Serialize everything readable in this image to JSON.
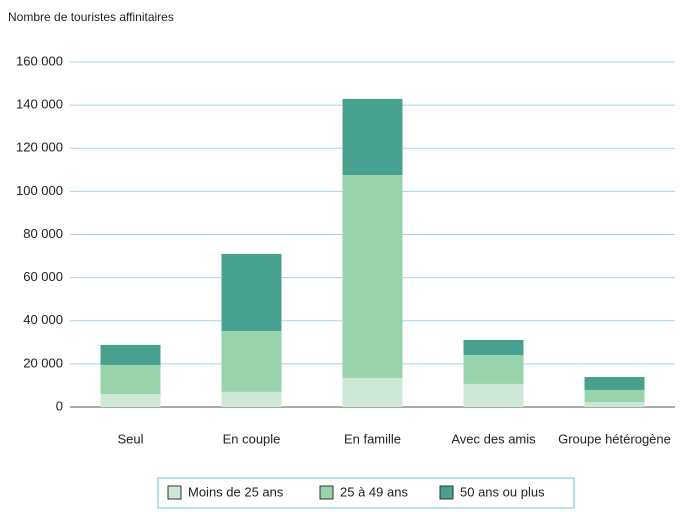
{
  "chart_data": {
    "type": "stacked_bar",
    "y_axis_label": "Nombre de touristes affinitaires",
    "categories": [
      "Seul",
      "En couple",
      "En famille",
      "Avec des amis",
      "Groupe hétérogène"
    ],
    "series": [
      {
        "name": "Moins de 25 ans",
        "color": "#cde8d6",
        "values": [
          6000,
          7000,
          13500,
          10700,
          2300
        ]
      },
      {
        "name": "25 à 49 ans",
        "color": "#98d3ac",
        "values": [
          13500,
          28200,
          94100,
          13400,
          5600
        ]
      },
      {
        "name": "50 ans ou plus",
        "color": "#48a08e",
        "values": [
          9300,
          35800,
          35300,
          7000,
          6000
        ]
      }
    ],
    "ylim": [
      0,
      160000
    ],
    "yticks": [
      0,
      {
        "value": 20000,
        "label": "20 000"
      },
      {
        "value": 40000,
        "label": "40 000"
      },
      {
        "value": 60000,
        "label": "60 000"
      },
      {
        "value": 80000,
        "label": "80 000"
      },
      {
        "value": 100000,
        "label": "100 000"
      },
      {
        "value": 120000,
        "label": "120 000"
      },
      {
        "value": 140000,
        "label": "140 000"
      },
      {
        "value": 160000,
        "label": "160 000"
      }
    ],
    "grid": true,
    "legend": "bottom"
  }
}
